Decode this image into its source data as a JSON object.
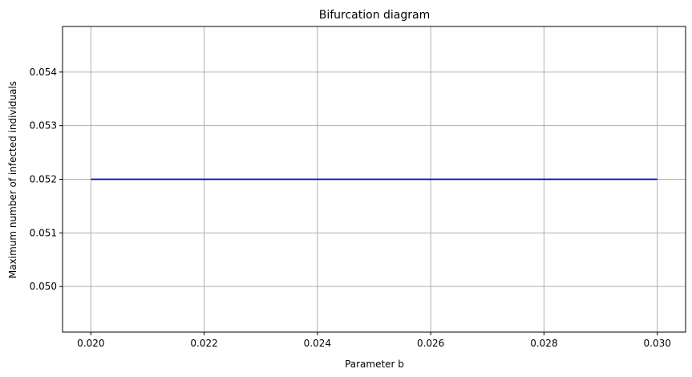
{
  "chart_data": {
    "type": "line",
    "title": "Bifurcation diagram",
    "xlabel": "Parameter b",
    "ylabel": "Maximum number of infected individuals",
    "xlim": [
      0.0195,
      0.0305
    ],
    "ylim": [
      0.04915,
      0.05485
    ],
    "xticks": [
      0.02,
      0.022,
      0.024,
      0.026,
      0.028,
      0.03
    ],
    "xtick_labels": [
      "0.020",
      "0.022",
      "0.024",
      "0.026",
      "0.028",
      "0.030"
    ],
    "yticks": [
      0.05,
      0.051,
      0.052,
      0.053,
      0.054
    ],
    "ytick_labels": [
      "0.050",
      "0.051",
      "0.052",
      "0.053",
      "0.054"
    ],
    "grid": true,
    "series": [
      {
        "color": "#0000cc",
        "x": [
          0.02,
          0.03
        ],
        "y": [
          0.052,
          0.052
        ]
      }
    ]
  }
}
